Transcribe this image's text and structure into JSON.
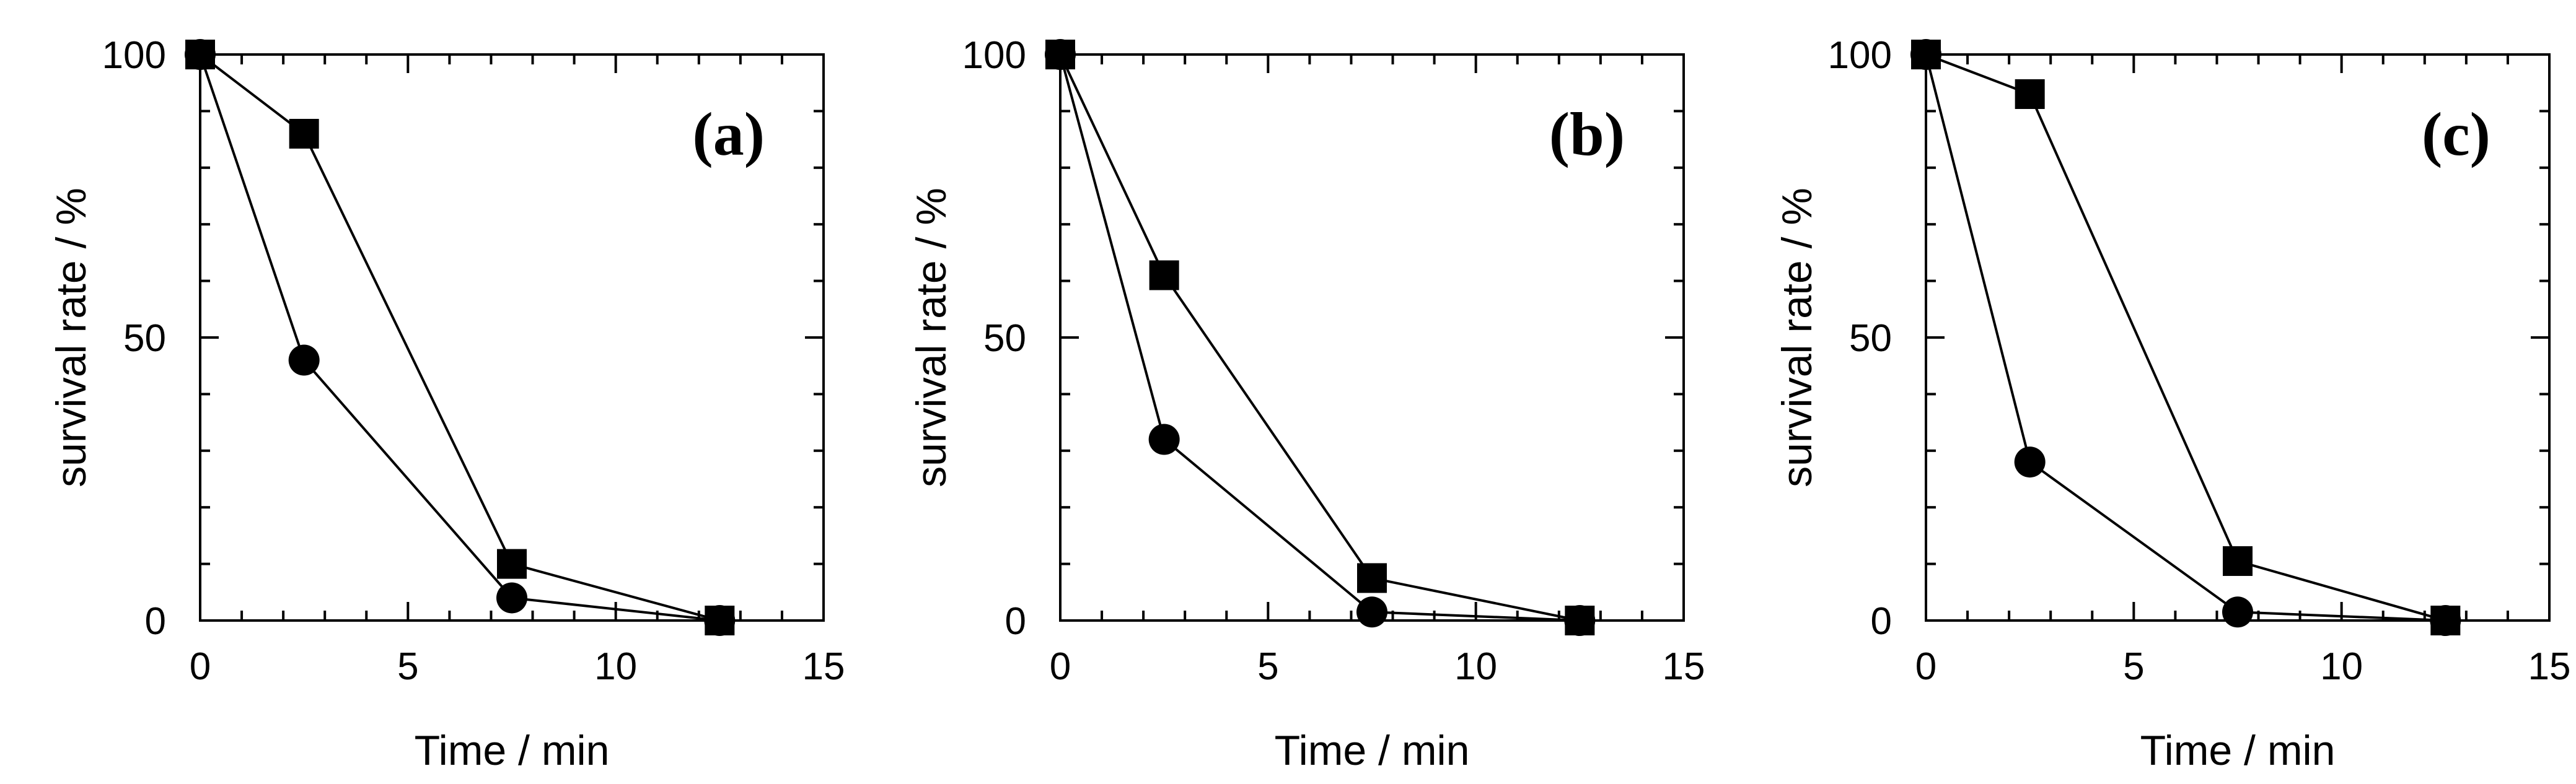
{
  "chart_data": [
    {
      "type": "line",
      "label": "(a)",
      "xlabel": "Time / min",
      "ylabel": "survival rate / %",
      "xlim": [
        0,
        15
      ],
      "ylim": [
        0,
        100
      ],
      "xticks": [
        0,
        5,
        10,
        15
      ],
      "yticks": [
        0,
        50,
        100
      ],
      "grid": false,
      "series": [
        {
          "name": "squares",
          "marker": "square",
          "x": [
            0,
            2.5,
            7.5,
            12.5
          ],
          "values": [
            100,
            86,
            10,
            0
          ]
        },
        {
          "name": "circles",
          "marker": "circle",
          "x": [
            0,
            2.5,
            7.5,
            12.5
          ],
          "values": [
            100,
            46,
            4,
            0
          ]
        }
      ]
    },
    {
      "type": "line",
      "label": "(b)",
      "xlabel": "Time / min",
      "ylabel": "survival rate / %",
      "xlim": [
        0,
        15
      ],
      "ylim": [
        0,
        100
      ],
      "xticks": [
        0,
        5,
        10,
        15
      ],
      "yticks": [
        0,
        50,
        100
      ],
      "grid": false,
      "series": [
        {
          "name": "squares",
          "marker": "square",
          "x": [
            0,
            2.5,
            7.5,
            12.5
          ],
          "values": [
            100,
            61,
            7.5,
            0
          ]
        },
        {
          "name": "circles",
          "marker": "circle",
          "x": [
            0,
            2.5,
            7.5,
            12.5
          ],
          "values": [
            100,
            32,
            1.5,
            0
          ]
        }
      ]
    },
    {
      "type": "line",
      "label": "(c)",
      "xlabel": "Time / min",
      "ylabel": "survival rate / %",
      "xlim": [
        0,
        15
      ],
      "ylim": [
        0,
        100
      ],
      "xticks": [
        0,
        5,
        10,
        15
      ],
      "yticks": [
        0,
        50,
        100
      ],
      "grid": false,
      "series": [
        {
          "name": "squares",
          "marker": "square",
          "x": [
            0,
            2.5,
            7.5,
            12.5
          ],
          "values": [
            100,
            93,
            10.5,
            0
          ]
        },
        {
          "name": "circles",
          "marker": "circle",
          "x": [
            0,
            2.5,
            7.5,
            12.5
          ],
          "values": [
            100,
            28,
            1.5,
            0
          ]
        }
      ]
    }
  ]
}
